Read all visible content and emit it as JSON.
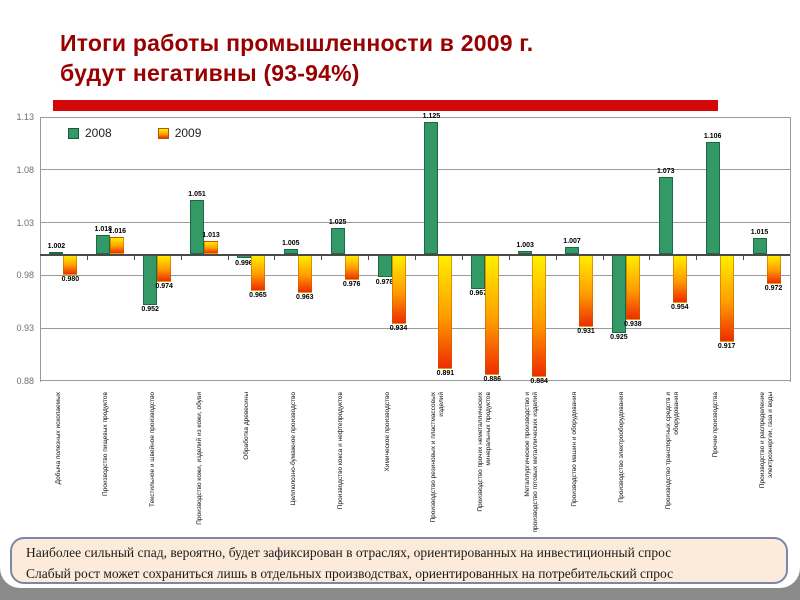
{
  "slide": {
    "title": {
      "line1": "Итоги работы промышленности в 2009 г.",
      "line2": "будут негативны (93-94%)"
    },
    "footer": {
      "line1": "Наиболее сильный спад, вероятно, будет зафиксирован в отраслях, ориентированных на инвестиционный спрос",
      "line2": "Слабый рост может сохраниться лишь в отдельных производствах, ориентированных на потребительский спрос"
    }
  },
  "colors": {
    "title_text": "#990000",
    "accent_bar": "#D40808",
    "bar_2008": "#339966",
    "bar_2009_gradient_top": "#FFF000",
    "bar_2009_gradient_bottom": "#EE2C00",
    "gridline": "#9A9A9A",
    "axis": "#4A4A4A",
    "footer_bg": "#FCEBDB",
    "footer_border": "#7788AA"
  },
  "chart_data": {
    "type": "bar",
    "title": "",
    "xlabel": "",
    "ylabel": "",
    "grid": "on",
    "legend_position": "top-left",
    "baseline": 1.0,
    "ylim": [
      0.88,
      1.13
    ],
    "y_ticks": [
      1.13,
      1.08,
      1.03,
      0.98,
      0.93,
      0.88
    ],
    "categories": [
      "Добыча полезных ископаемых",
      "Производство пищевых продуктов",
      "Текстильное и швейное производство",
      "Производство кожи, изделий из кожи, обуви",
      "Обработка древесины",
      "Целлюлозно-бумажное производство",
      "Производство кокса и нефтепродуктов",
      "Химическое производство",
      "Производство резиновых и пластмассовых изделий",
      "Производство прочих неметаллических минеральных продуктов",
      "Металлургическое производство и производство готовых металлических изделий",
      "Производство машин и оборудования",
      "Производство электрооборудования",
      "Производство транспортных средств и оборудования",
      "Прочие производства",
      "Производство и распределение электроэнергии, газа и воды"
    ],
    "series": [
      {
        "name": "2008",
        "values": [
          1.002,
          1.018,
          0.952,
          1.051,
          0.996,
          1.005,
          1.025,
          0.978,
          1.125,
          0.967,
          1.003,
          1.007,
          0.925,
          1.073,
          1.106,
          1.015
        ]
      },
      {
        "name": "2009",
        "values": [
          0.98,
          1.016,
          0.974,
          1.013,
          0.965,
          0.963,
          0.976,
          0.934,
          0.891,
          0.886,
          0.884,
          0.931,
          0.938,
          0.954,
          0.917,
          0.972
        ]
      }
    ]
  }
}
